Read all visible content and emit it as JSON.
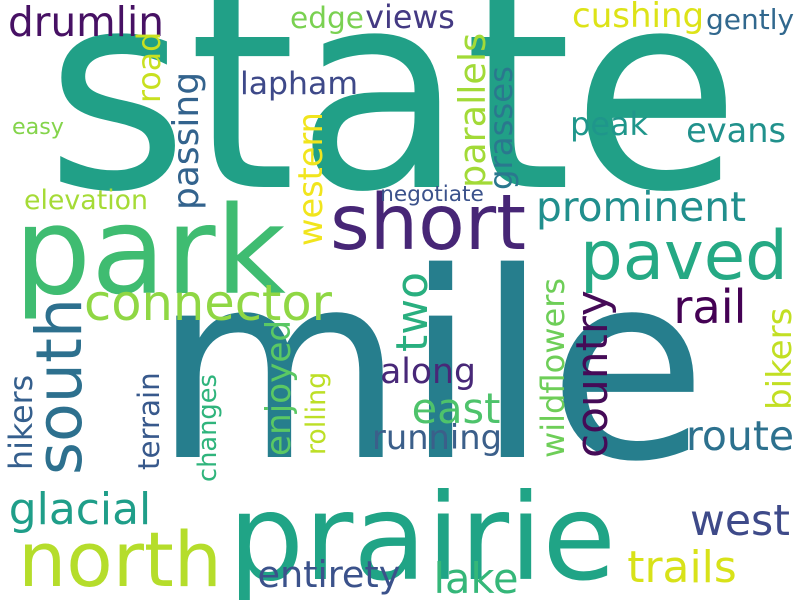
{
  "background": "#ffffff",
  "words": [
    {
      "text": "state",
      "color": "#21a087",
      "orientation": "horizontal"
    },
    {
      "text": "mile",
      "color": "#267e8d",
      "orientation": "horizontal"
    },
    {
      "text": "park",
      "color": "#3fbc71",
      "orientation": "horizontal"
    },
    {
      "text": "prairie",
      "color": "#20a486",
      "orientation": "horizontal"
    },
    {
      "text": "north",
      "color": "#b5dd2b",
      "orientation": "horizontal"
    },
    {
      "text": "paved",
      "color": "#25a984",
      "orientation": "horizontal"
    },
    {
      "text": "short",
      "color": "#472676",
      "orientation": "horizontal"
    },
    {
      "text": "south",
      "color": "#2d708e",
      "orientation": "vertical"
    },
    {
      "text": "connector",
      "color": "#8fd744",
      "orientation": "horizontal"
    },
    {
      "text": "two",
      "color": "#29af7f",
      "orientation": "vertical"
    },
    {
      "text": "prominent",
      "color": "#218f8d",
      "orientation": "horizontal"
    },
    {
      "text": "drumlin",
      "color": "#471164",
      "orientation": "horizontal"
    },
    {
      "text": "country",
      "color": "#450b57",
      "orientation": "vertical"
    },
    {
      "text": "rail",
      "color": "#440154",
      "orientation": "horizontal"
    },
    {
      "text": "west",
      "color": "#3e4a89",
      "orientation": "horizontal"
    },
    {
      "text": "route",
      "color": "#2d718e",
      "orientation": "horizontal"
    },
    {
      "text": "glacial",
      "color": "#1f9e89",
      "orientation": "horizontal"
    },
    {
      "text": "lake",
      "color": "#35b779",
      "orientation": "horizontal"
    },
    {
      "text": "trails",
      "color": "#d8e219",
      "orientation": "horizontal"
    },
    {
      "text": "east",
      "color": "#4ec36b",
      "orientation": "horizontal"
    },
    {
      "text": "entirety",
      "color": "#3b528b",
      "orientation": "horizontal"
    },
    {
      "text": "running",
      "color": "#3b5f8a",
      "orientation": "horizontal"
    },
    {
      "text": "along",
      "color": "#482878",
      "orientation": "horizontal"
    },
    {
      "text": "lapham",
      "color": "#3e4989",
      "orientation": "horizontal"
    },
    {
      "text": "peak",
      "color": "#1f968b",
      "orientation": "horizontal"
    },
    {
      "text": "evans",
      "color": "#21918c",
      "orientation": "horizontal"
    },
    {
      "text": "cushing",
      "color": "#dde318",
      "orientation": "horizontal"
    },
    {
      "text": "edge",
      "color": "#7ad151",
      "orientation": "horizontal"
    },
    {
      "text": "views",
      "color": "#443a83",
      "orientation": "horizontal"
    },
    {
      "text": "gently",
      "color": "#31688e",
      "orientation": "horizontal"
    },
    {
      "text": "road",
      "color": "#c8e020",
      "orientation": "vertical"
    },
    {
      "text": "passing",
      "color": "#33638d",
      "orientation": "vertical"
    },
    {
      "text": "western",
      "color": "#f1e51d",
      "orientation": "vertical"
    },
    {
      "text": "parallels",
      "color": "#a2da37",
      "orientation": "vertical"
    },
    {
      "text": "grasses",
      "color": "#2a788e",
      "orientation": "vertical"
    },
    {
      "text": "enjoyed",
      "color": "#5ac864",
      "orientation": "vertical"
    },
    {
      "text": "wildflowers",
      "color": "#6ece58",
      "orientation": "vertical"
    },
    {
      "text": "bikers",
      "color": "#c2df23",
      "orientation": "vertical"
    },
    {
      "text": "hikers",
      "color": "#355f8d",
      "orientation": "vertical"
    },
    {
      "text": "terrain",
      "color": "#38598c",
      "orientation": "vertical"
    },
    {
      "text": "changes",
      "color": "#2fb47c",
      "orientation": "vertical"
    },
    {
      "text": "rolling",
      "color": "#bddf26",
      "orientation": "vertical"
    },
    {
      "text": "easy",
      "color": "#84d44b",
      "orientation": "horizontal"
    },
    {
      "text": "elevation",
      "color": "#a5db36",
      "orientation": "horizontal"
    },
    {
      "text": "negotiate",
      "color": "#3b528b",
      "orientation": "horizontal"
    }
  ]
}
